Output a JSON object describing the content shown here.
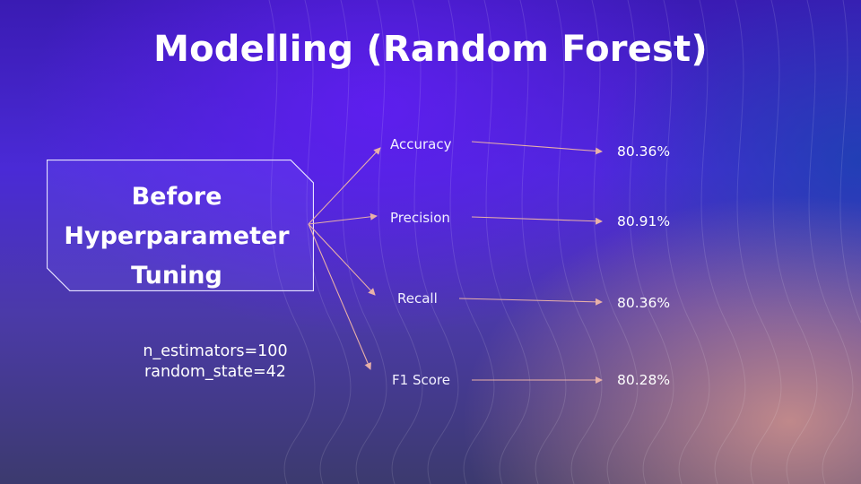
{
  "title": "Modelling (Random Forest)",
  "box": {
    "lines": [
      "Before",
      "Hyperparameter",
      "Tuning"
    ]
  },
  "params": [
    "n_estimators=100",
    "random_state=42"
  ],
  "metrics": [
    {
      "label": "Accuracy",
      "value": "80.36%"
    },
    {
      "label": "Precision",
      "value": "80.91%"
    },
    {
      "label": "Recall",
      "value": "80.36%"
    },
    {
      "label": "F1 Score",
      "value": "80.28%"
    }
  ],
  "colors": {
    "arrow": "#e8b0a8",
    "box_border": "#e6e2ff",
    "background_top": "#4a2ad6",
    "background_corner": "#d6968c"
  }
}
